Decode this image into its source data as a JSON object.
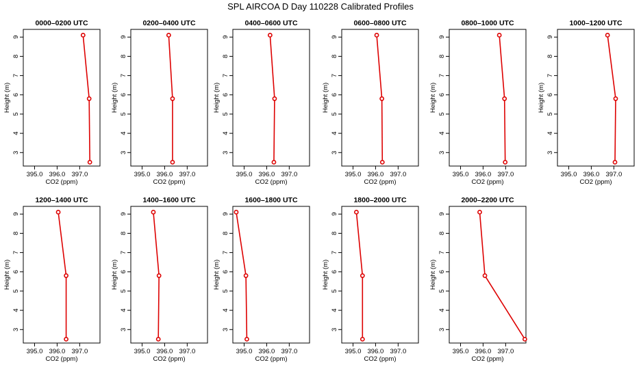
{
  "figure": {
    "title": "SPL AIRCOA D  Day 110228  Calibrated Profiles"
  },
  "colors": {
    "profile": "#dd0000",
    "background": "#ffffff",
    "axes": "#000000"
  },
  "chart_data": [
    {
      "type": "line",
      "title": "0000–0200 UTC",
      "xlabel": "CO2 (ppm)",
      "ylabel": "Height (m)",
      "xlim": [
        394.5,
        397.9
      ],
      "ylim": [
        2.3,
        9.4
      ],
      "xticks": [
        "395.0",
        "396.0",
        "397.0"
      ],
      "xtick_values": [
        395,
        396,
        397
      ],
      "yticks": [
        "3",
        "4",
        "5",
        "6",
        "7",
        "8",
        "9"
      ],
      "ytick_values": [
        3,
        4,
        5,
        6,
        7,
        8,
        9
      ],
      "heights": [
        9.1,
        5.8,
        2.5
      ],
      "values": [
        397.15,
        397.42,
        397.45
      ]
    },
    {
      "type": "line",
      "title": "0200–0400 UTC",
      "xlabel": "CO2 (ppm)",
      "ylabel": "Height (m)",
      "xlim": [
        394.5,
        397.9
      ],
      "ylim": [
        2.3,
        9.4
      ],
      "xticks": [
        "395.0",
        "396.0",
        "397.0"
      ],
      "xtick_values": [
        395,
        396,
        397
      ],
      "yticks": [
        "3",
        "4",
        "5",
        "6",
        "7",
        "8",
        "9"
      ],
      "ytick_values": [
        3,
        4,
        5,
        6,
        7,
        8,
        9
      ],
      "heights": [
        9.1,
        5.8,
        2.5
      ],
      "values": [
        396.18,
        396.35,
        396.35
      ]
    },
    {
      "type": "line",
      "title": "0400–0600 UTC",
      "xlabel": "CO2 (ppm)",
      "ylabel": "Height (m)",
      "xlim": [
        394.5,
        397.9
      ],
      "ylim": [
        2.3,
        9.4
      ],
      "xticks": [
        "395.0",
        "396.0",
        "397.0"
      ],
      "xtick_values": [
        395,
        396,
        397
      ],
      "yticks": [
        "3",
        "4",
        "5",
        "6",
        "7",
        "8",
        "9"
      ],
      "ytick_values": [
        3,
        4,
        5,
        6,
        7,
        8,
        9
      ],
      "heights": [
        9.1,
        5.8,
        2.5
      ],
      "values": [
        396.15,
        396.35,
        396.32
      ]
    },
    {
      "type": "line",
      "title": "0600–0800 UTC",
      "xlabel": "CO2 (ppm)",
      "ylabel": "Height (m)",
      "xlim": [
        394.5,
        397.9
      ],
      "ylim": [
        2.3,
        9.4
      ],
      "xticks": [
        "395.0",
        "396.0",
        "397.0"
      ],
      "xtick_values": [
        395,
        396,
        397
      ],
      "yticks": [
        "3",
        "4",
        "5",
        "6",
        "7",
        "8",
        "9"
      ],
      "ytick_values": [
        3,
        4,
        5,
        6,
        7,
        8,
        9
      ],
      "heights": [
        9.1,
        5.8,
        2.5
      ],
      "values": [
        396.05,
        396.28,
        396.3
      ]
    },
    {
      "type": "line",
      "title": "0800–1000 UTC",
      "xlabel": "CO2 (ppm)",
      "ylabel": "Height (m)",
      "xlim": [
        394.5,
        397.9
      ],
      "ylim": [
        2.3,
        9.4
      ],
      "xticks": [
        "395.0",
        "396.0",
        "397.0"
      ],
      "xtick_values": [
        395,
        396,
        397
      ],
      "yticks": [
        "3",
        "4",
        "5",
        "6",
        "7",
        "8",
        "9"
      ],
      "ytick_values": [
        3,
        4,
        5,
        6,
        7,
        8,
        9
      ],
      "heights": [
        9.1,
        5.8,
        2.5
      ],
      "values": [
        396.72,
        396.95,
        396.98
      ]
    },
    {
      "type": "line",
      "title": "1000–1200 UTC",
      "xlabel": "CO2 (ppm)",
      "ylabel": "Height (m)",
      "xlim": [
        394.5,
        397.9
      ],
      "ylim": [
        2.3,
        9.4
      ],
      "xticks": [
        "395.0",
        "396.0",
        "397.0"
      ],
      "xtick_values": [
        395,
        396,
        397
      ],
      "yticks": [
        "3",
        "4",
        "5",
        "6",
        "7",
        "8",
        "9"
      ],
      "ytick_values": [
        3,
        4,
        5,
        6,
        7,
        8,
        9
      ],
      "heights": [
        9.1,
        5.8,
        2.5
      ],
      "values": [
        396.72,
        397.08,
        397.05
      ]
    },
    {
      "type": "line",
      "title": "1200–1400 UTC",
      "xlabel": "CO2 (ppm)",
      "ylabel": "Height (m)",
      "xlim": [
        394.5,
        397.9
      ],
      "ylim": [
        2.3,
        9.4
      ],
      "xticks": [
        "395.0",
        "396.0",
        "397.0"
      ],
      "xtick_values": [
        395,
        396,
        397
      ],
      "yticks": [
        "3",
        "4",
        "5",
        "6",
        "7",
        "8",
        "9"
      ],
      "ytick_values": [
        3,
        4,
        5,
        6,
        7,
        8,
        9
      ],
      "heights": [
        9.1,
        5.8,
        2.5
      ],
      "values": [
        396.05,
        396.4,
        396.4
      ]
    },
    {
      "type": "line",
      "title": "1400–1600 UTC",
      "xlabel": "CO2 (ppm)",
      "ylabel": "Height (m)",
      "xlim": [
        394.5,
        397.9
      ],
      "ylim": [
        2.3,
        9.4
      ],
      "xticks": [
        "395.0",
        "396.0",
        "397.0"
      ],
      "xtick_values": [
        395,
        396,
        397
      ],
      "yticks": [
        "3",
        "4",
        "5",
        "6",
        "7",
        "8",
        "9"
      ],
      "ytick_values": [
        3,
        4,
        5,
        6,
        7,
        8,
        9
      ],
      "heights": [
        9.1,
        5.8,
        2.5
      ],
      "values": [
        395.5,
        395.75,
        395.72
      ]
    },
    {
      "type": "line",
      "title": "1600–1800 UTC",
      "xlabel": "CO2 (ppm)",
      "ylabel": "Height (m)",
      "xlim": [
        394.5,
        397.9
      ],
      "ylim": [
        2.3,
        9.4
      ],
      "xticks": [
        "395.0",
        "396.0",
        "397.0"
      ],
      "xtick_values": [
        395,
        396,
        397
      ],
      "yticks": [
        "3",
        "4",
        "5",
        "6",
        "7",
        "8",
        "9"
      ],
      "ytick_values": [
        3,
        4,
        5,
        6,
        7,
        8,
        9
      ],
      "heights": [
        9.1,
        5.8,
        2.5
      ],
      "values": [
        394.65,
        395.08,
        395.12
      ]
    },
    {
      "type": "line",
      "title": "1800–2000 UTC",
      "xlabel": "CO2 (ppm)",
      "ylabel": "Height (m)",
      "xlim": [
        394.5,
        397.9
      ],
      "ylim": [
        2.3,
        9.4
      ],
      "xticks": [
        "395.0",
        "396.0",
        "397.0"
      ],
      "xtick_values": [
        395,
        396,
        397
      ],
      "yticks": [
        "3",
        "4",
        "5",
        "6",
        "7",
        "8",
        "9"
      ],
      "ytick_values": [
        3,
        4,
        5,
        6,
        7,
        8,
        9
      ],
      "heights": [
        9.1,
        5.8,
        2.5
      ],
      "values": [
        395.15,
        395.42,
        395.42
      ]
    },
    {
      "type": "line",
      "title": "2000–2200 UTC",
      "xlabel": "CO2 (ppm)",
      "ylabel": "Height (m)",
      "xlim": [
        394.5,
        397.9
      ],
      "ylim": [
        2.3,
        9.4
      ],
      "xticks": [
        "395.0",
        "396.0",
        "397.0"
      ],
      "xtick_values": [
        395,
        396,
        397
      ],
      "yticks": [
        "3",
        "4",
        "5",
        "6",
        "7",
        "8",
        "9"
      ],
      "ytick_values": [
        3,
        4,
        5,
        6,
        7,
        8,
        9
      ],
      "heights": [
        9.1,
        5.8,
        2.5
      ],
      "values": [
        395.85,
        396.08,
        397.85
      ]
    }
  ]
}
